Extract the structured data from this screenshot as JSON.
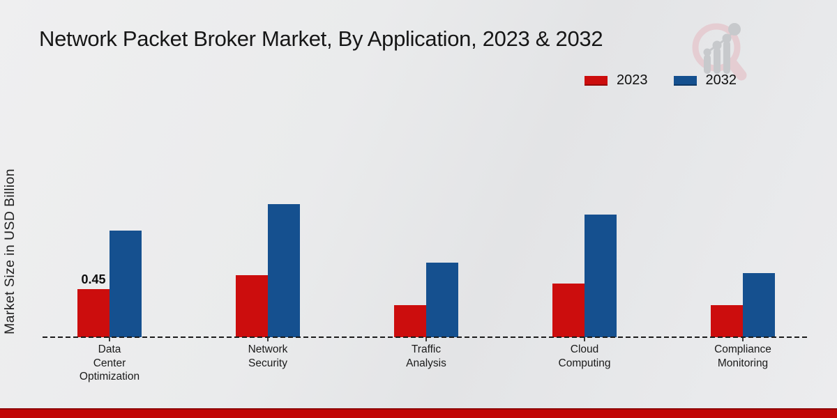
{
  "header": {
    "title": "Network Packet Broker Market, By Application, 2023 & 2032"
  },
  "y_axis": {
    "label": "Market Size in USD Billion"
  },
  "legend": {
    "position": "top-right",
    "items": [
      {
        "label": "2023",
        "color": "#cc0d0d"
      },
      {
        "label": "2032",
        "color": "#15508f"
      }
    ]
  },
  "chart_data": {
    "type": "bar",
    "title": "Network Packet Broker Market, By Application, 2023 & 2032",
    "xlabel": "",
    "ylabel": "Market Size in USD Billion",
    "categories": [
      "Data Center Optimization",
      "Network Security",
      "Traffic Analysis",
      "Cloud Computing",
      "Compliance Monitoring"
    ],
    "series": [
      {
        "name": "2023",
        "color": "#cc0d0d",
        "values": [
          0.45,
          0.58,
          0.3,
          0.5,
          0.3
        ]
      },
      {
        "name": "2032",
        "color": "#15508f",
        "values": [
          1.0,
          1.25,
          0.7,
          1.15,
          0.6
        ]
      }
    ],
    "data_labels": [
      {
        "series": "2023",
        "category": "Data Center Optimization",
        "text": "0.45"
      }
    ],
    "ylim": [
      0,
      1.4
    ],
    "grid": false,
    "y_axis_tick_labels_visible": false,
    "baseline_style": "dashed",
    "legend_position": "top-right"
  },
  "branding": {
    "logo_name": "market-research-growth-magnifier-logo",
    "logo_ring_color": "#e5cdd2",
    "logo_glyph_color": "#c7c9cc",
    "footer_bar_color": "#c10707"
  }
}
